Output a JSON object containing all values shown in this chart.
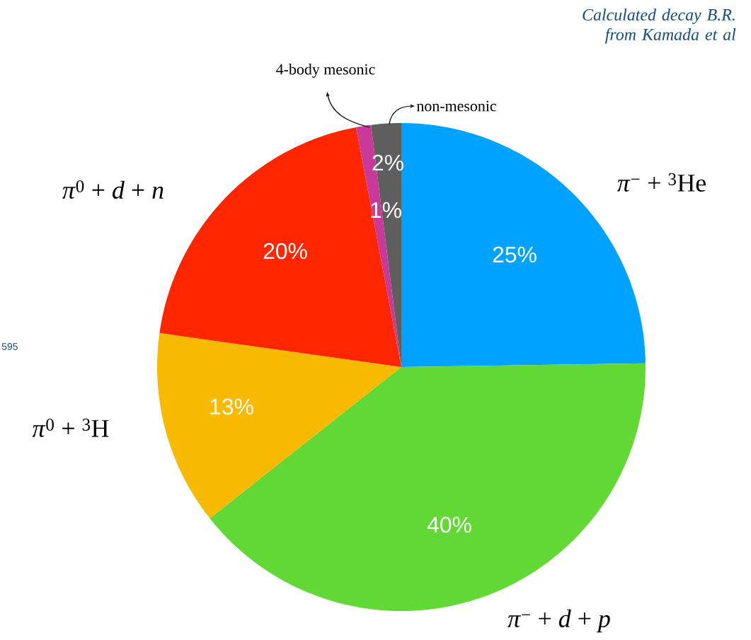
{
  "chart_data": {
    "type": "pie",
    "title": "Calculated decay B.R. from Kamada et al",
    "categories": [
      "*π*$^{−}$ + $^{3}$He",
      "*π*$^{−}$ + *d* + *p*",
      "*π*$^{0}$ + $^{3}$H",
      "*π*$^{0}$ + *d* + *n*",
      "4-body mesonic",
      "non-mesonic"
    ],
    "values": [
      25,
      40,
      13,
      20,
      1,
      2
    ],
    "colors": [
      "#00a2ff",
      "#61d836",
      "#f8ba00",
      "#ff2600",
      "#c8399a",
      "#5e5e5e"
    ],
    "value_labels": [
      "25%",
      "40%",
      "13%",
      "20%",
      "1%",
      "2%"
    ],
    "annotations": [
      "595"
    ]
  }
}
